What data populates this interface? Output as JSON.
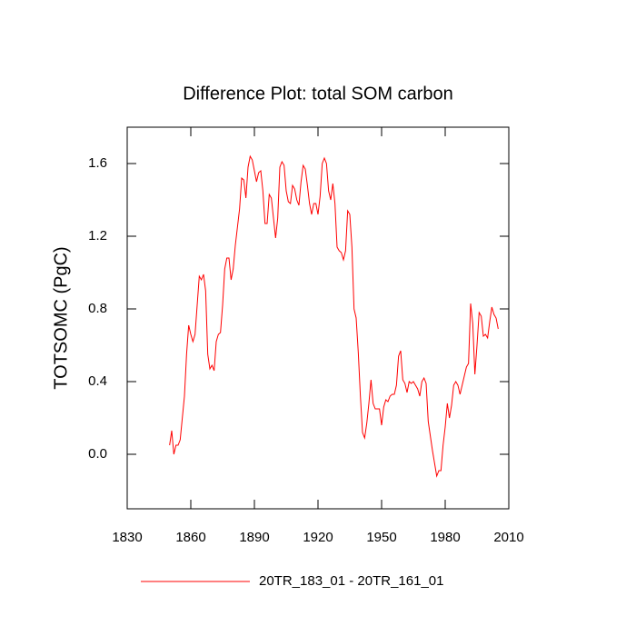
{
  "chart_data": {
    "type": "line",
    "title": "Difference Plot: total SOM carbon",
    "y_label": "TOTSOMC  (PgC)",
    "x": [
      1850,
      1851,
      1852,
      1853,
      1854,
      1855,
      1856,
      1857,
      1858,
      1859,
      1860,
      1861,
      1862,
      1863,
      1864,
      1865,
      1866,
      1867,
      1868,
      1869,
      1870,
      1871,
      1872,
      1873,
      1874,
      1875,
      1876,
      1877,
      1878,
      1879,
      1880,
      1881,
      1882,
      1883,
      1884,
      1885,
      1886,
      1887,
      1888,
      1889,
      1890,
      1891,
      1892,
      1893,
      1894,
      1895,
      1896,
      1897,
      1898,
      1899,
      1900,
      1901,
      1902,
      1903,
      1904,
      1905,
      1906,
      1907,
      1908,
      1909,
      1910,
      1911,
      1912,
      1913,
      1914,
      1915,
      1916,
      1917,
      1918,
      1919,
      1920,
      1921,
      1922,
      1923,
      1924,
      1925,
      1926,
      1927,
      1928,
      1929,
      1930,
      1931,
      1932,
      1933,
      1934,
      1935,
      1936,
      1937,
      1938,
      1939,
      1940,
      1941,
      1942,
      1943,
      1944,
      1945,
      1946,
      1947,
      1948,
      1949,
      1950,
      1951,
      1952,
      1953,
      1954,
      1955,
      1956,
      1957,
      1958,
      1959,
      1960,
      1961,
      1962,
      1963,
      1964,
      1965,
      1966,
      1967,
      1968,
      1969,
      1970,
      1971,
      1972,
      1973,
      1974,
      1975,
      1976,
      1977,
      1978,
      1979,
      1980,
      1981,
      1982,
      1983,
      1984,
      1985,
      1986,
      1987,
      1988,
      1989,
      1990,
      1991,
      1992,
      1993,
      1994,
      1995,
      1996,
      1997,
      1998,
      1999,
      2000,
      2001,
      2002,
      2003,
      2004,
      2005
    ],
    "series": [
      {
        "name": "20TR_183_01 - 20TR_161_01",
        "color": "#ff0000",
        "values": [
          0.05,
          0.13,
          0.0,
          0.05,
          0.05,
          0.08,
          0.2,
          0.32,
          0.55,
          0.71,
          0.66,
          0.62,
          0.66,
          0.82,
          0.98,
          0.96,
          0.99,
          0.9,
          0.55,
          0.47,
          0.49,
          0.46,
          0.62,
          0.66,
          0.67,
          0.82,
          1.02,
          1.08,
          1.08,
          0.96,
          1.02,
          1.15,
          1.25,
          1.35,
          1.52,
          1.51,
          1.41,
          1.58,
          1.64,
          1.62,
          1.56,
          1.5,
          1.55,
          1.56,
          1.45,
          1.27,
          1.27,
          1.43,
          1.41,
          1.3,
          1.19,
          1.3,
          1.58,
          1.61,
          1.59,
          1.45,
          1.39,
          1.38,
          1.48,
          1.46,
          1.4,
          1.37,
          1.5,
          1.59,
          1.57,
          1.48,
          1.38,
          1.32,
          1.38,
          1.38,
          1.32,
          1.42,
          1.6,
          1.63,
          1.6,
          1.45,
          1.4,
          1.49,
          1.38,
          1.14,
          1.12,
          1.11,
          1.07,
          1.12,
          1.34,
          1.32,
          1.14,
          0.8,
          0.75,
          0.56,
          0.32,
          0.12,
          0.09,
          0.17,
          0.28,
          0.41,
          0.28,
          0.25,
          0.25,
          0.25,
          0.16,
          0.26,
          0.3,
          0.29,
          0.32,
          0.33,
          0.33,
          0.38,
          0.54,
          0.57,
          0.41,
          0.39,
          0.34,
          0.4,
          0.39,
          0.4,
          0.38,
          0.36,
          0.32,
          0.4,
          0.42,
          0.39,
          0.18,
          0.1,
          0.02,
          -0.05,
          -0.12,
          -0.09,
          -0.09,
          0.05,
          0.15,
          0.28,
          0.2,
          0.27,
          0.38,
          0.4,
          0.38,
          0.33,
          0.38,
          0.43,
          0.48,
          0.5,
          0.83,
          0.72,
          0.44,
          0.6,
          0.78,
          0.76,
          0.65,
          0.66,
          0.64,
          0.73,
          0.81,
          0.77,
          0.75,
          0.69
        ]
      }
    ],
    "xlim": [
      1830,
      2010
    ],
    "xticks": [
      1830,
      1860,
      1890,
      1920,
      1950,
      1980,
      2010
    ],
    "ylim": [
      -0.3,
      1.8
    ],
    "yticks": [
      {
        "value": 0,
        "label": "0.0"
      },
      0.4,
      0.8,
      1.2,
      1.6
    ],
    "legend": "bottom"
  }
}
